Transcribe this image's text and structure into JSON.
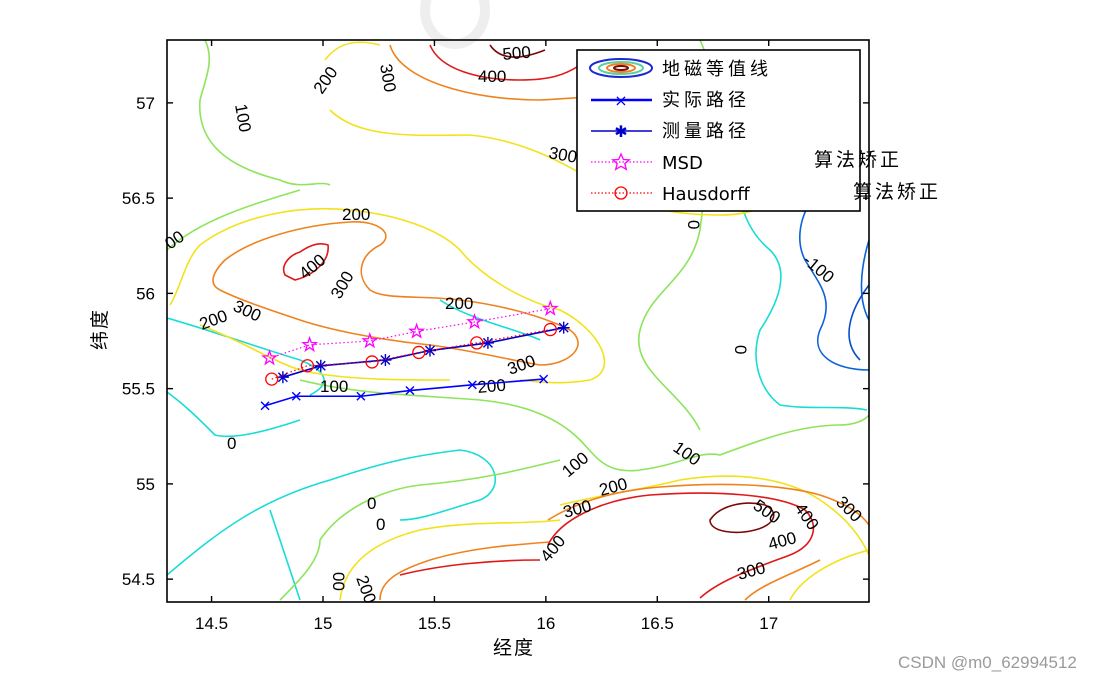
{
  "chart_data": {
    "type": "contour",
    "xlabel": "经度",
    "ylabel": "纬度",
    "xlim": [
      14.3,
      17.45
    ],
    "ylim": [
      54.38,
      57.33
    ],
    "xticks": [
      "14.5",
      "15",
      "15.5",
      "16",
      "16.5",
      "17"
    ],
    "yticks": [
      "54.5",
      "55",
      "55.5",
      "56",
      "56.5",
      "57"
    ],
    "legend_position": "top-right",
    "legend": [
      {
        "label": "地磁等值线",
        "style": "contour"
      },
      {
        "label": "实际路径",
        "style": "line-x",
        "color": "#0000ff"
      },
      {
        "label": "测量路径",
        "style": "line-star",
        "color": "#0000cc"
      },
      {
        "label": "MSD",
        "style": "dotted-pentagram",
        "color": "#ff00ff"
      },
      {
        "label": "Hausdorff",
        "style": "dotted-circle",
        "color": "#ff0000"
      }
    ],
    "contour_labels": [
      "500",
      "400",
      "300",
      "200",
      "100",
      "00",
      "0",
      "-100",
      "200",
      "400",
      "300",
      "300",
      "200",
      "100",
      "200",
      "300",
      "100",
      "100",
      "200",
      "0",
      "0",
      "0",
      "00",
      "200",
      "400",
      "300",
      "200",
      "300",
      "500",
      "400",
      "400",
      "300",
      "300",
      "0"
    ],
    "series": [
      {
        "name": "实际路径",
        "x": [
          14.74,
          14.88,
          15.17,
          15.39,
          15.67,
          15.99
        ],
        "y": [
          55.41,
          55.46,
          55.46,
          55.49,
          55.52,
          55.55
        ]
      },
      {
        "name": "测量路径",
        "x": [
          14.82,
          14.99,
          15.28,
          15.48,
          15.74,
          16.08
        ],
        "y": [
          55.56,
          55.62,
          55.65,
          55.7,
          55.74,
          55.82
        ]
      },
      {
        "name": "MSD",
        "x": [
          14.76,
          14.94,
          15.21,
          15.42,
          15.68,
          16.02
        ],
        "y": [
          55.66,
          55.73,
          55.75,
          55.8,
          55.85,
          55.92
        ]
      },
      {
        "name": "Hausdorff",
        "x": [
          14.77,
          14.93,
          15.22,
          15.43,
          15.69,
          16.02
        ],
        "y": [
          55.55,
          55.62,
          55.64,
          55.69,
          55.74,
          55.81
        ]
      }
    ],
    "annotations": [
      "算法矫正",
      "算法矫正"
    ]
  },
  "watermark": "CSDN @m0_62994512",
  "colors": {
    "level_neg100": "#0a63d8",
    "level_0": "#18dcd6",
    "level_100": "#8ee45a",
    "level_200": "#f2e21a",
    "level_300": "#f0821e",
    "level_400": "#e01818",
    "level_500": "#7a0a0a"
  }
}
